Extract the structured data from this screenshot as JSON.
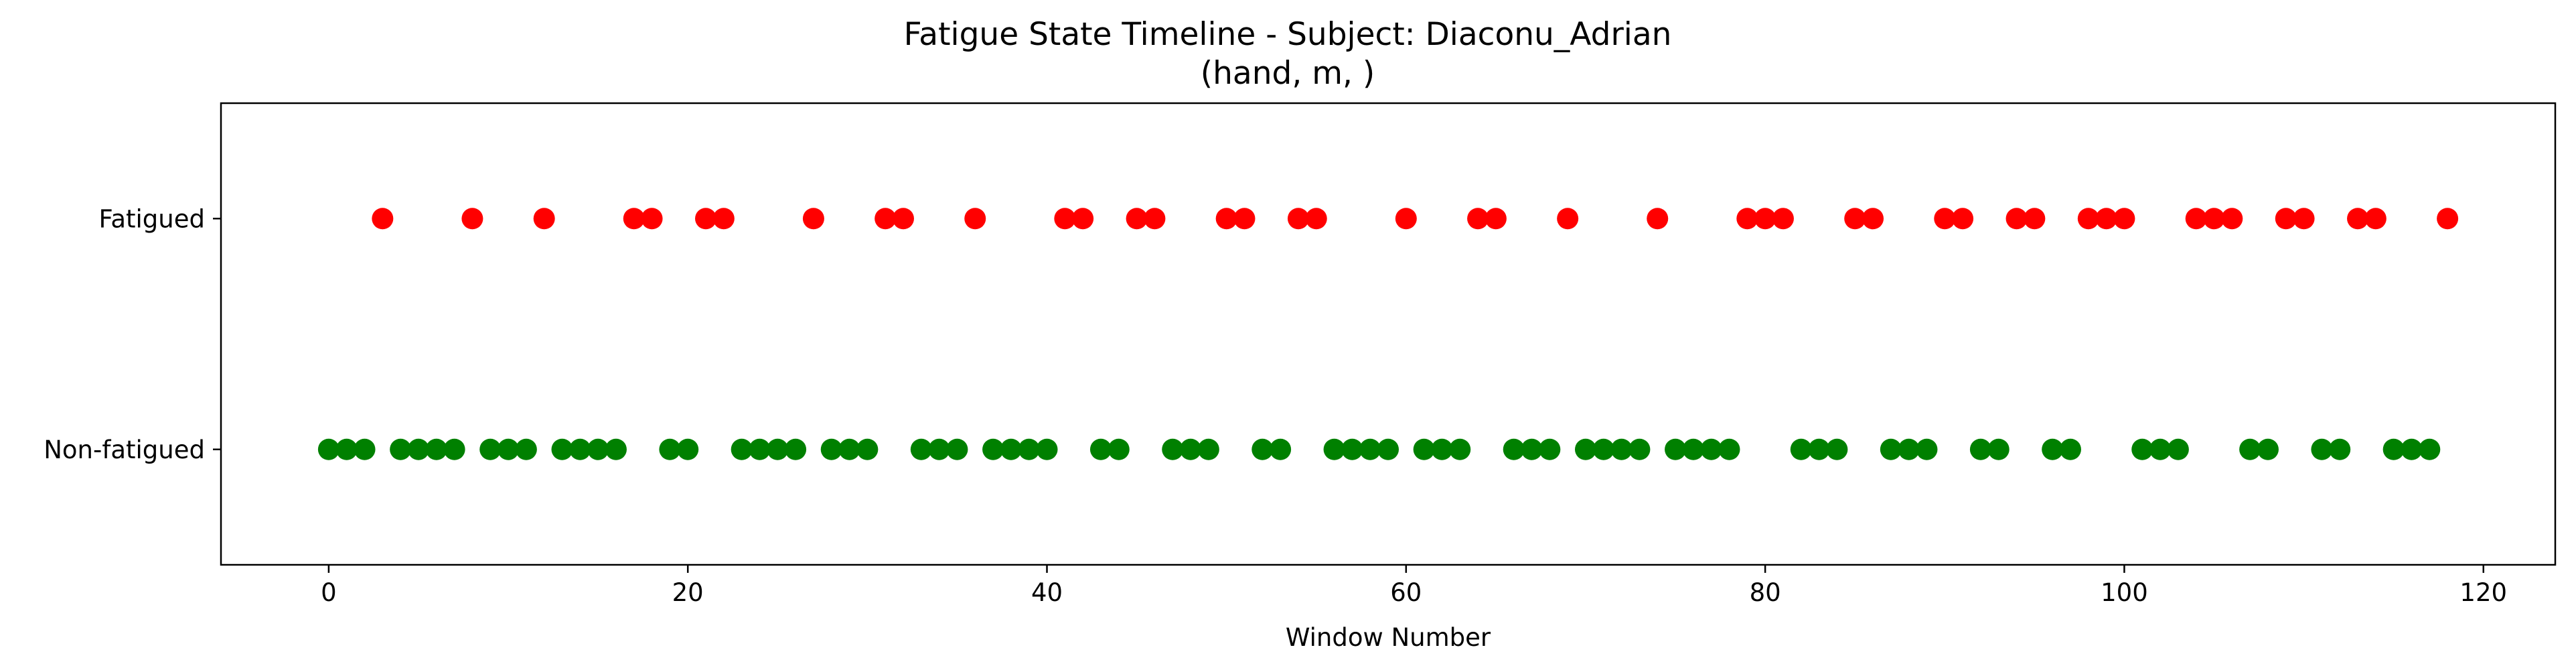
{
  "chart_data": {
    "type": "scatter",
    "title": "Fatigue State Timeline - Subject: Diaconu_Adrian",
    "subtitle": "(hand, m, )",
    "xlabel": "Window Number",
    "ylabel": "",
    "xlim": [
      -6,
      124
    ],
    "xticks": [
      0,
      20,
      40,
      60,
      80,
      100,
      120
    ],
    "ylim": [
      -0.5,
      1.5
    ],
    "categories": [
      "Non-fatigued",
      "Fatigued"
    ],
    "grid": false,
    "series": [
      {
        "state": "Fatigued",
        "y": 1,
        "color": "#ff0000",
        "x": [
          3,
          8,
          12,
          17,
          18,
          21,
          22,
          27,
          31,
          32,
          36,
          41,
          42,
          45,
          46,
          50,
          51,
          54,
          55,
          60,
          64,
          65,
          69,
          74,
          79,
          80,
          81,
          85,
          86,
          90,
          91,
          94,
          95,
          98,
          99,
          100,
          104,
          105,
          106,
          109,
          110,
          113,
          114,
          118
        ]
      },
      {
        "state": "Non-fatigued",
        "y": 0,
        "color": "#008000",
        "x": [
          0,
          1,
          2,
          4,
          5,
          6,
          7,
          9,
          10,
          11,
          13,
          14,
          15,
          16,
          19,
          20,
          23,
          24,
          25,
          26,
          28,
          29,
          30,
          33,
          34,
          35,
          37,
          38,
          39,
          40,
          43,
          44,
          47,
          48,
          49,
          52,
          53,
          56,
          57,
          58,
          59,
          61,
          62,
          63,
          66,
          67,
          68,
          70,
          71,
          72,
          73,
          75,
          76,
          77,
          78,
          82,
          83,
          84,
          87,
          88,
          89,
          92,
          93,
          96,
          97,
          101,
          102,
          103,
          107,
          108,
          111,
          112,
          115,
          116,
          117
        ]
      }
    ]
  }
}
